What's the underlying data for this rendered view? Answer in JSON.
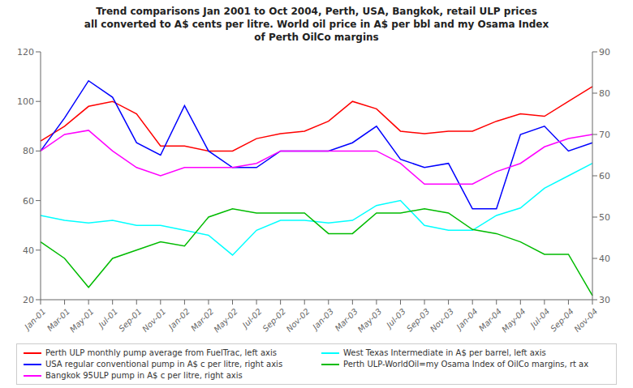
{
  "chart_data": {
    "type": "line",
    "title": "Trend comparisons Jan 2001 to Oct 2004, Perth, USA, Bangkok, retail ULP prices\nall converted to A$ cents per litre. World oil price in A$ per bbl and my Osama Index\nof Perth OilCo margins",
    "categories": [
      "Jan-01",
      "Mar-01",
      "May-01",
      "Jul-01",
      "Sep-01",
      "Nov-01",
      "Jan-02",
      "Mar-02",
      "May-02",
      "Jul-02",
      "Sep-02",
      "Nov-02",
      "Jan-03",
      "Mar-03",
      "May-03",
      "Jul-03",
      "Sep-03",
      "Nov-03",
      "Jan-04",
      "Mar-04",
      "May-04",
      "Jul-04",
      "Sep-04",
      "Nov-04"
    ],
    "series": [
      {
        "name": "Perth ULP monthly pump average from FuelTrac, left axis",
        "color": "#FF0000",
        "axis": "y",
        "values": [
          84,
          90,
          98,
          100,
          95,
          82,
          82,
          80,
          80,
          85,
          87,
          88,
          92,
          100,
          97,
          88,
          87,
          88,
          88,
          92,
          95,
          94,
          100,
          106
        ]
      },
      {
        "name": "West Texas Intermediate in A$ per barrel, left axis",
        "color": "#00FFFF",
        "axis": "y",
        "values": [
          54,
          52,
          51,
          52,
          50,
          50,
          48,
          46,
          38,
          48,
          52,
          52,
          51,
          52,
          58,
          60,
          50,
          48,
          48,
          54,
          57,
          65,
          70,
          75
        ]
      },
      {
        "name": "USA regular conventional pump in A$ c per litre, right axis",
        "color": "#0000FF",
        "axis": "y2",
        "values": [
          66,
          74,
          83,
          79,
          68,
          65,
          77,
          66,
          62,
          62,
          66,
          66,
          66,
          68,
          72,
          64,
          62,
          63,
          52,
          52,
          70,
          72,
          66,
          68
        ]
      },
      {
        "name": "Perth ULP-WorldOil=my Osama Index of OilCo margins, rt ax",
        "color": "#00BB00",
        "axis": "y2",
        "values": [
          44,
          40,
          33,
          40,
          42,
          44,
          43,
          50,
          52,
          51,
          51,
          51,
          46,
          46,
          51,
          51,
          52,
          51,
          47,
          46,
          44,
          41,
          41,
          31
        ]
      },
      {
        "name": "Bangkok 95ULP pump in A$ c per litre, right axis",
        "color": "#FF00FF",
        "axis": "y2",
        "values": [
          66,
          70,
          71,
          66,
          62,
          60,
          62,
          62,
          62,
          63,
          66,
          66,
          66,
          66,
          66,
          63,
          58,
          58,
          58,
          61,
          63,
          67,
          69,
          70
        ]
      }
    ],
    "ylim": [
      20,
      120
    ],
    "yticks": [
      20,
      40,
      60,
      80,
      100,
      120
    ],
    "y2lim": [
      30,
      90
    ],
    "y2ticks": [
      30,
      40,
      50,
      60,
      70,
      80,
      90
    ],
    "grid": false,
    "legend": "bottom"
  }
}
